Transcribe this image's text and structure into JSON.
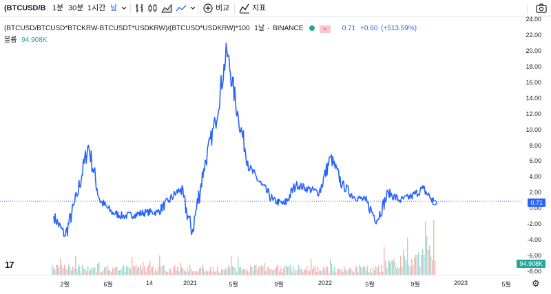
{
  "toolbar": {
    "symbol": "(BTCUSD/BTC",
    "intervals": [
      "1분",
      "30분",
      "1시간"
    ],
    "interval_dropdown": "날",
    "compare_label": "비교",
    "indicators_label": "지표"
  },
  "legend": {
    "formula": "(BTCUSD/BTCUSD*BTCKRW-BTCUSDT*USDKRW)/(BTCUSD*USDKRW)*100",
    "interval": "1날",
    "exchange": "BINANCE",
    "badge_icon": "≈",
    "last_value": "0.71",
    "change": "+0.60",
    "change_pct": "(+513.59%)",
    "volume_label": "볼륨",
    "volume_value": "94.908K"
  },
  "price_axis": {
    "labels": [
      "24.00",
      "22.00",
      "20.00",
      "18.00",
      "16.00",
      "14.00",
      "12.00",
      "10.00",
      "8.00",
      "6.00",
      "4.00",
      "2.00",
      "0.00",
      "-2.00",
      "-4.00",
      "-6.00",
      "-8.00"
    ],
    "current_badge": "0.71",
    "volume_badge": "94.908K"
  },
  "time_axis": {
    "labels": [
      "2월",
      "6월",
      "14",
      "2021",
      "5월",
      "9월",
      "2022",
      "5월",
      "9월",
      "2023",
      "5월"
    ]
  },
  "colors": {
    "line": "#2962ff",
    "volume_up": "#26a69a",
    "volume_down": "#ef5350",
    "current_badge": "#2962ff",
    "volume_badge": "#26a69a"
  },
  "chart_data": {
    "type": "line",
    "title": "(BTCUSD/BTCUSD*BTCKRW-BTCUSDT*USDKRW)/(BTCUSD*USDKRW)*100",
    "ylim": [
      -8,
      24
    ],
    "grid": false,
    "x": [
      "2020-01",
      "2020-02",
      "2020-03",
      "2020-04",
      "2020-05",
      "2020-06",
      "2020-07",
      "2020-08",
      "2020-09",
      "2020-10",
      "2020-11",
      "2020-12",
      "2021-01",
      "2021-02",
      "2021-03",
      "2021-04",
      "2021-05",
      "2021-06",
      "2021-07",
      "2021-08",
      "2021-09",
      "2021-10",
      "2021-11",
      "2021-12",
      "2022-01",
      "2022-02",
      "2022-03",
      "2022-04",
      "2022-05",
      "2022-06",
      "2022-07",
      "2022-08",
      "2022-09",
      "2022-10"
    ],
    "series": [
      {
        "values": [
          -1.0,
          -3.5,
          1.5,
          8.0,
          1.0,
          -0.5,
          -1.0,
          -0.8,
          -0.5,
          -0.5,
          1.0,
          2.5,
          -3.0,
          5.0,
          11.0,
          20.0,
          11.5,
          5.0,
          3.0,
          1.0,
          0.5,
          3.0,
          2.5,
          2.0,
          6.5,
          3.0,
          1.5,
          1.0,
          -1.5,
          2.0,
          1.0,
          1.5,
          2.5,
          0.71
        ]
      }
    ],
    "volume": {
      "last": "94.908K"
    }
  }
}
